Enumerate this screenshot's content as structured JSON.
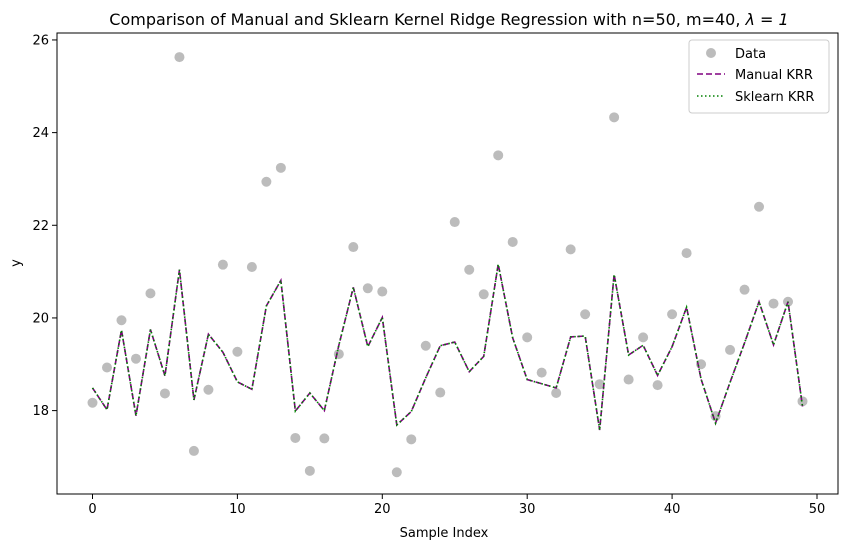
{
  "chart_data": {
    "type": "line",
    "title": "Comparison of Manual and Sklearn Kernel Ridge Regression with n=50, m=40, ",
    "title_lambda": "λ = 1",
    "xlabel": "Sample Index",
    "ylabel": "y",
    "xlim": [
      -2.45,
      51.45
    ],
    "ylim": [
      16.2,
      26.15
    ],
    "xticks": [
      0,
      10,
      20,
      30,
      40,
      50
    ],
    "yticks": [
      18,
      20,
      22,
      24,
      26
    ],
    "grid": false,
    "legend_position": "top-right",
    "series": [
      {
        "name": "Data",
        "kind": "scatter",
        "color": "#a0a0a0",
        "x": [
          0,
          1,
          2,
          3,
          4,
          5,
          6,
          7,
          8,
          9,
          10,
          11,
          12,
          13,
          14,
          15,
          16,
          17,
          18,
          19,
          20,
          21,
          22,
          23,
          24,
          25,
          26,
          27,
          28,
          29,
          30,
          31,
          32,
          33,
          34,
          35,
          36,
          37,
          38,
          39,
          40,
          41,
          42,
          43,
          44,
          45,
          46,
          47,
          48,
          49
        ],
        "values": [
          18.17,
          18.93,
          19.95,
          19.12,
          20.53,
          18.37,
          25.63,
          17.13,
          18.45,
          21.15,
          19.27,
          21.1,
          22.94,
          23.24,
          17.41,
          16.7,
          17.4,
          19.22,
          21.53,
          20.64,
          20.57,
          16.67,
          17.38,
          19.4,
          18.39,
          22.07,
          21.04,
          20.51,
          23.51,
          21.64,
          19.58,
          18.82,
          18.38,
          21.48,
          20.08,
          18.57,
          24.33,
          18.67,
          19.58,
          18.55,
          20.08,
          21.4,
          19.0,
          17.88,
          19.31,
          20.61,
          22.4,
          20.31,
          20.35,
          18.2
        ]
      },
      {
        "name": "Manual KRR",
        "kind": "line",
        "dash": "dashed",
        "color": "#800080",
        "x": [
          0,
          1,
          2,
          3,
          4,
          5,
          6,
          7,
          8,
          9,
          10,
          11,
          12,
          13,
          14,
          15,
          16,
          17,
          18,
          19,
          20,
          21,
          22,
          23,
          24,
          25,
          26,
          27,
          28,
          29,
          30,
          31,
          32,
          33,
          34,
          35,
          36,
          37,
          38,
          39,
          40,
          41,
          42,
          43,
          44,
          45,
          46,
          47,
          48,
          49
        ],
        "values": [
          18.49,
          18.02,
          19.74,
          17.89,
          19.75,
          18.75,
          21.04,
          18.23,
          19.65,
          19.26,
          18.62,
          18.46,
          20.26,
          20.81,
          17.99,
          18.38,
          18.0,
          19.41,
          20.66,
          19.38,
          20.01,
          17.69,
          17.98,
          18.71,
          19.4,
          19.48,
          18.84,
          19.17,
          21.16,
          19.57,
          18.67,
          18.58,
          18.49,
          19.59,
          19.61,
          17.58,
          20.94,
          19.2,
          19.41,
          18.76,
          19.38,
          20.23,
          18.68,
          17.73,
          18.61,
          19.46,
          20.35,
          19.42,
          20.35,
          18.09
        ]
      },
      {
        "name": "Sklearn KRR",
        "kind": "line",
        "dash": "dotted",
        "color": "#008000",
        "x": [
          0,
          1,
          2,
          3,
          4,
          5,
          6,
          7,
          8,
          9,
          10,
          11,
          12,
          13,
          14,
          15,
          16,
          17,
          18,
          19,
          20,
          21,
          22,
          23,
          24,
          25,
          26,
          27,
          28,
          29,
          30,
          31,
          32,
          33,
          34,
          35,
          36,
          37,
          38,
          39,
          40,
          41,
          42,
          43,
          44,
          45,
          46,
          47,
          48,
          49
        ],
        "values": [
          18.49,
          18.02,
          19.74,
          17.89,
          19.75,
          18.75,
          21.04,
          18.23,
          19.65,
          19.26,
          18.62,
          18.46,
          20.26,
          20.81,
          17.99,
          18.38,
          18.0,
          19.41,
          20.66,
          19.38,
          20.01,
          17.69,
          17.98,
          18.71,
          19.4,
          19.48,
          18.84,
          19.17,
          21.16,
          19.57,
          18.67,
          18.58,
          18.49,
          19.59,
          19.61,
          17.58,
          20.94,
          19.2,
          19.41,
          18.76,
          19.38,
          20.23,
          18.68,
          17.73,
          18.61,
          19.46,
          20.35,
          19.42,
          20.35,
          18.09
        ]
      }
    ]
  }
}
